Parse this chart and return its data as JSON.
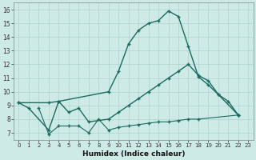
{
  "xlabel": "Humidex (Indice chaleur)",
  "xlim": [
    -0.5,
    23.5
  ],
  "ylim": [
    6.5,
    16.5
  ],
  "xticks": [
    0,
    1,
    2,
    3,
    4,
    5,
    6,
    7,
    8,
    9,
    10,
    11,
    12,
    13,
    14,
    15,
    16,
    17,
    18,
    19,
    20,
    21,
    22,
    23
  ],
  "yticks": [
    7,
    8,
    9,
    10,
    11,
    12,
    13,
    14,
    15,
    16
  ],
  "background_color": "#ceeae7",
  "grid_color": "#aed4d0",
  "line_color": "#1a6b5e",
  "line1_x": [
    0,
    1,
    3,
    4,
    9,
    10,
    11,
    12,
    13,
    14,
    15,
    16,
    17,
    18,
    19,
    20,
    22
  ],
  "line1_y": [
    9.2,
    8.8,
    7.2,
    9.3,
    10.0,
    11.5,
    13.5,
    14.5,
    15.0,
    15.2,
    15.9,
    15.5,
    13.3,
    11.1,
    10.5,
    9.8,
    8.3
  ],
  "line2_x": [
    0,
    3,
    4,
    5,
    6,
    7,
    9,
    10,
    11,
    12,
    13,
    14,
    15,
    16,
    17,
    18,
    19,
    20,
    21,
    22
  ],
  "line2_y": [
    9.2,
    9.2,
    9.3,
    8.5,
    8.8,
    7.8,
    8.0,
    8.5,
    9.0,
    9.5,
    10.0,
    10.5,
    11.0,
    11.5,
    12.0,
    11.2,
    10.8,
    9.8,
    9.3,
    8.3
  ],
  "line3_x": [
    2,
    3,
    4,
    5,
    6,
    7,
    8,
    9,
    10,
    11,
    12,
    13,
    14,
    15,
    16,
    17,
    18,
    22
  ],
  "line3_y": [
    8.8,
    6.9,
    7.5,
    7.5,
    7.5,
    7.0,
    8.0,
    7.2,
    7.4,
    7.5,
    7.6,
    7.7,
    7.8,
    7.8,
    7.9,
    8.0,
    8.0,
    8.3
  ]
}
